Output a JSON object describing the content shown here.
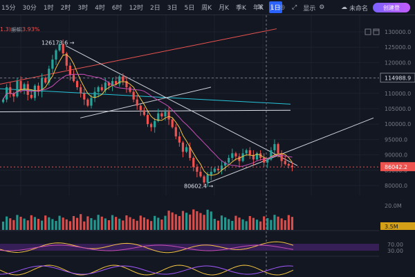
{
  "toolbar": {
    "timeframes": [
      "15分",
      "30分",
      "1时",
      "2时",
      "3时",
      "4时",
      "6时",
      "12时",
      "2日",
      "3日",
      "5日",
      "周K",
      "月K",
      "季K",
      "年K",
      "1日"
    ],
    "active_index": 15,
    "right": {
      "settings_label": "显示",
      "layout_name": "未命名",
      "login_label": "创建登"
    }
  },
  "top_info": {
    "left_value": "1.3)",
    "change_label": "振幅",
    "change_value": "3.93%"
  },
  "colors": {
    "up": "#26a69a",
    "down": "#ef5350",
    "ma_yellow": "#f5c542",
    "ma_pink": "#c94fb7",
    "ma_cyan": "#26c6da",
    "accent_purple": "#a259ff"
  },
  "chart_data": {
    "type": "candlestick",
    "price_axis": [
      "130000.0",
      "125000.0",
      "120000.0",
      "115000.0",
      "110000.0",
      "105000.0",
      "100000.0",
      "95000.0",
      "90000.0",
      "85000.0",
      "80000.0"
    ],
    "ylim": [
      80000,
      130000
    ],
    "current_price_label": "114988.9",
    "last_price_label": "86042.2",
    "high_annotation": "126173.6",
    "low_annotation": "80602.4",
    "volume_axis": [
      "20.0M"
    ],
    "volume_current_label": "3.5M",
    "osc_axis": [
      "70.00",
      "30.00"
    ]
  }
}
